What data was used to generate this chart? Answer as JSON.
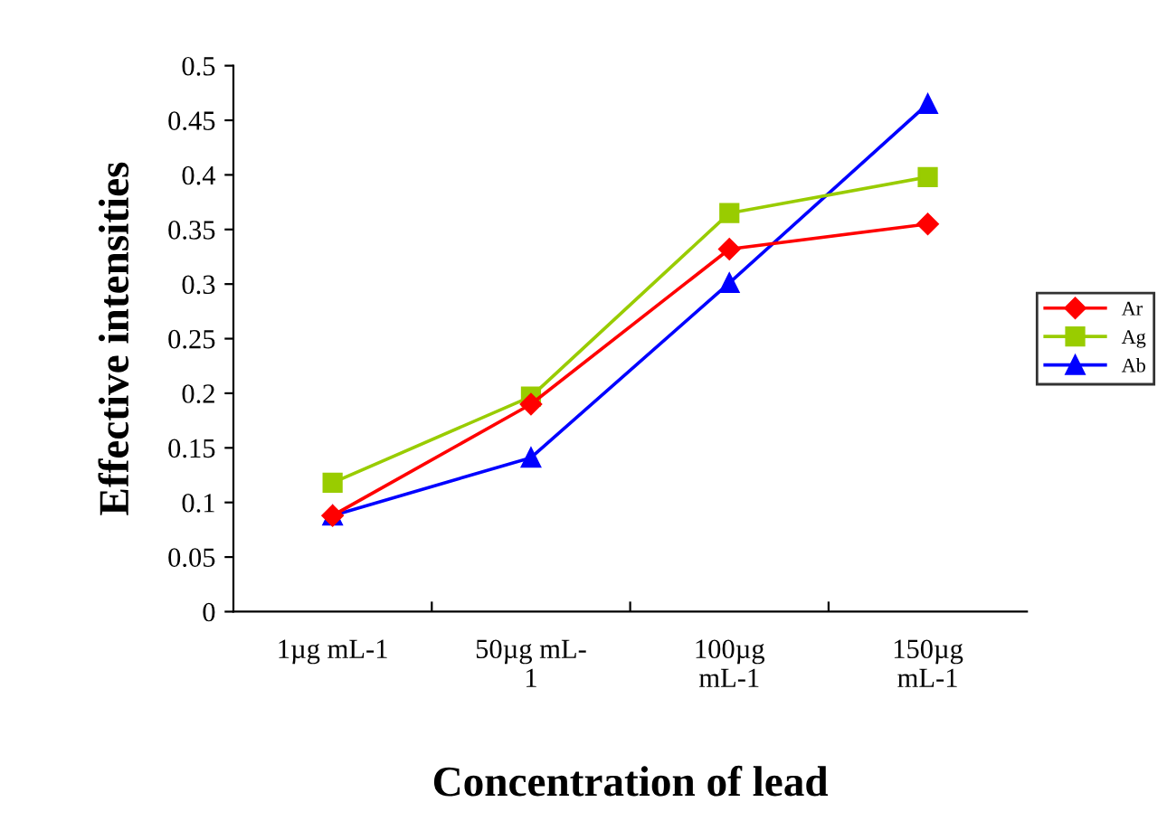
{
  "chart_data": {
    "type": "line",
    "xlabel": "Concentration of lead",
    "ylabel": "Effective intensities",
    "categories": [
      "1µg mL-1",
      "50µg mL-\n1",
      "100µg\nmL-1",
      "150µg\nmL-1"
    ],
    "series": [
      {
        "name": "Ar",
        "color": "#ff0000",
        "marker": "diamond",
        "values": [
          0.088,
          0.19,
          0.332,
          0.355
        ]
      },
      {
        "name": "Ag",
        "color": "#99cc00",
        "marker": "square",
        "values": [
          0.118,
          0.197,
          0.365,
          0.398
        ]
      },
      {
        "name": "Ab",
        "color": "#0000ff",
        "marker": "triangle",
        "values": [
          0.088,
          0.141,
          0.301,
          0.465
        ]
      }
    ],
    "ylim": [
      0,
      0.5
    ],
    "yticks": [
      0,
      0.05,
      0.1,
      0.15,
      0.2,
      0.25,
      0.3,
      0.35,
      0.4,
      0.45,
      0.5
    ],
    "grid": false,
    "legend": "right",
    "line_style": "solid"
  }
}
